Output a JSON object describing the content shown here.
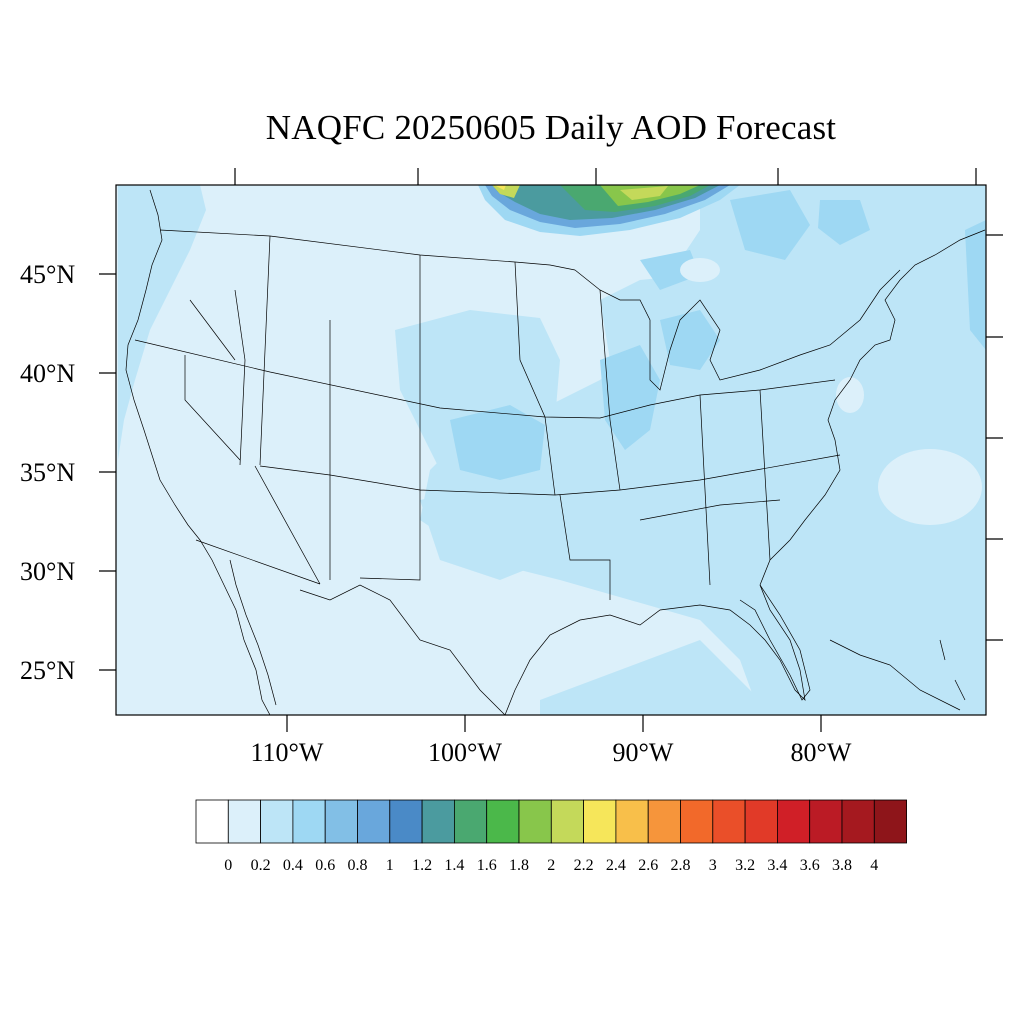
{
  "title": "NAQFC 20250605 Daily AOD Forecast",
  "map": {
    "region": "Contiguous United States",
    "latitude_labels": [
      "25°N",
      "30°N",
      "35°N",
      "40°N",
      "45°N"
    ],
    "longitude_labels": [
      "110°W",
      "100°W",
      "90°W",
      "80°W"
    ],
    "field": "Aerosol Optical Depth (AOD)",
    "background_level_color": "#dcf0fa",
    "feature_colors": {
      "smoke_plume_core": "#4b9b9f",
      "smoke_plume_mid": "#4aa870",
      "smoke_plume_peak": "#c4d95a",
      "moderate_aod": "#bde5f7",
      "elevated_aod": "#9ed8f3"
    }
  },
  "colorbar": {
    "labels": [
      "0",
      "0.2",
      "0.4",
      "0.6",
      "0.8",
      "1",
      "1.2",
      "1.4",
      "1.6",
      "1.8",
      "2",
      "2.2",
      "2.4",
      "2.6",
      "2.8",
      "3",
      "3.2",
      "3.4",
      "3.6",
      "3.8",
      "4"
    ],
    "colors": [
      "#ffffff",
      "#dcf0fa",
      "#bde5f7",
      "#9ed8f3",
      "#82bfe6",
      "#69a7dc",
      "#4a8ac7",
      "#4b9b9f",
      "#4aa870",
      "#4bb84a",
      "#88c64b",
      "#c4d95a",
      "#f6e65a",
      "#f8bf4a",
      "#f6953b",
      "#f2692a",
      "#ea4f29",
      "#e13a28",
      "#d01f27",
      "#bb1b25",
      "#a5191f",
      "#8e151a"
    ]
  }
}
